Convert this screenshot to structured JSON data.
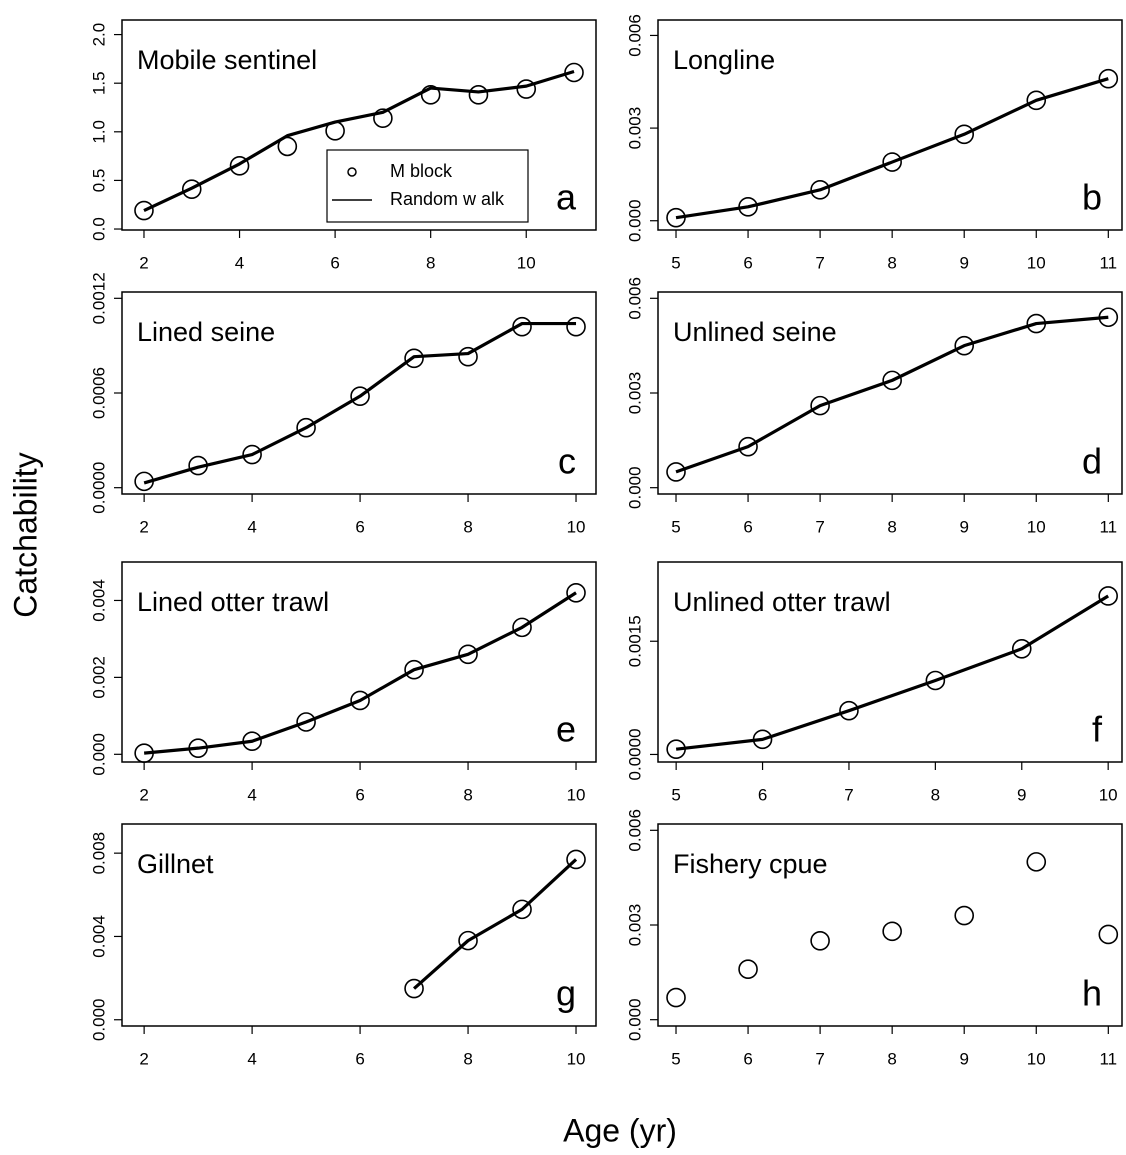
{
  "ylabel": "Catchability",
  "xlabel": "Age (yr)",
  "chart_data": [
    {
      "type": "line",
      "title": "Mobile sentinel",
      "annotation": "a",
      "legend": "bottom-right",
      "x": [
        2,
        3,
        4,
        5,
        6,
        7,
        8,
        9,
        10,
        11
      ],
      "series": [
        {
          "name": "M block",
          "mode": "markers",
          "color": "#000000",
          "values": [
            0.19,
            0.41,
            0.65,
            0.85,
            1.01,
            1.14,
            1.38,
            1.38,
            1.44,
            1.61
          ]
        },
        {
          "name": "Random w alk",
          "mode": "line",
          "color": "#000000",
          "values": [
            0.19,
            0.42,
            0.67,
            0.96,
            1.1,
            1.2,
            1.45,
            1.41,
            1.47,
            1.62
          ]
        }
      ],
      "xlim": [
        1.54,
        11.46
      ],
      "ylim": [
        -0.01,
        2.15
      ],
      "xticks": [
        2,
        4,
        6,
        8,
        10
      ],
      "yticks": [
        {
          "value": 0,
          "label": "0.0"
        },
        0.5,
        {
          "value": 1,
          "label": "1.0"
        },
        1.5,
        {
          "value": 2,
          "label": "2.0"
        }
      ]
    },
    {
      "type": "line",
      "title": "Longline",
      "annotation": "b",
      "x": [
        5,
        6,
        7,
        8,
        9,
        10,
        11
      ],
      "series": [
        {
          "mode": "markers",
          "color": "#000000",
          "values": [
            0.0001,
            0.00045,
            0.001,
            0.0019,
            0.0028,
            0.0039,
            0.0046
          ]
        },
        {
          "mode": "line",
          "color": "#000000",
          "values": [
            0.0001,
            0.00045,
            0.001,
            0.0019,
            0.0028,
            0.0039,
            0.0046
          ]
        }
      ],
      "xlim": [
        4.75,
        11.19
      ],
      "ylim": [
        -0.0003,
        0.0065
      ],
      "xticks": [
        5,
        6,
        7,
        8,
        9,
        10,
        11
      ],
      "yticks": [
        {
          "value": 0,
          "label": "0.000"
        },
        {
          "value": 0.003,
          "label": "0.003"
        },
        {
          "value": 0.006,
          "label": "0.006"
        }
      ]
    },
    {
      "type": "line",
      "title": "Lined seine",
      "annotation": "c",
      "x": [
        2,
        3,
        4,
        5,
        6,
        7,
        8,
        9,
        10
      ],
      "series": [
        {
          "mode": "markers",
          "color": "#000000",
          "values": [
            4e-05,
            0.00014,
            0.00021,
            0.00038,
            0.00058,
            0.00082,
            0.00083,
            0.00102,
            0.00102
          ]
        },
        {
          "mode": "line",
          "color": "#000000",
          "values": [
            3e-05,
            0.00013,
            0.00021,
            0.00038,
            0.00058,
            0.00083,
            0.00085,
            0.00104,
            0.00104
          ]
        }
      ],
      "xlim": [
        1.59,
        10.37
      ],
      "ylim": [
        -4e-05,
        0.00124
      ],
      "xticks": [
        2,
        4,
        6,
        8,
        10
      ],
      "yticks": [
        {
          "value": 0,
          "label": "0.0000"
        },
        {
          "value": 0.0006,
          "label": "0.0006"
        },
        {
          "value": 0.0012,
          "label": "0.0012"
        }
      ]
    },
    {
      "type": "line",
      "title": "Unlined seine",
      "annotation": "d",
      "x": [
        5,
        6,
        7,
        8,
        9,
        10,
        11
      ],
      "series": [
        {
          "mode": "markers",
          "color": "#000000",
          "values": [
            0.0005,
            0.0013,
            0.0026,
            0.0034,
            0.0045,
            0.0052,
            0.0054
          ]
        },
        {
          "mode": "line",
          "color": "#000000",
          "values": [
            0.0005,
            0.0013,
            0.0026,
            0.0034,
            0.0045,
            0.0052,
            0.0054
          ]
        }
      ],
      "xlim": [
        4.75,
        11.19
      ],
      "ylim": [
        -0.0002,
        0.0062
      ],
      "xticks": [
        5,
        6,
        7,
        8,
        9,
        10,
        11
      ],
      "yticks": [
        {
          "value": 0,
          "label": "0.000"
        },
        {
          "value": 0.003,
          "label": "0.003"
        },
        {
          "value": 0.006,
          "label": "0.006"
        }
      ]
    },
    {
      "type": "line",
      "title": "Lined otter trawl",
      "annotation": "e",
      "x": [
        2,
        3,
        4,
        5,
        6,
        7,
        8,
        9,
        10
      ],
      "series": [
        {
          "mode": "markers",
          "color": "#000000",
          "values": [
            3e-05,
            0.00016,
            0.00034,
            0.00084,
            0.0014,
            0.0022,
            0.0026,
            0.0033,
            0.0042
          ]
        },
        {
          "mode": "line",
          "color": "#000000",
          "values": [
            3e-05,
            0.00016,
            0.00034,
            0.00084,
            0.0014,
            0.0022,
            0.0026,
            0.0033,
            0.0042
          ]
        }
      ],
      "xlim": [
        1.59,
        10.37
      ],
      "ylim": [
        -0.0002,
        0.005
      ],
      "xticks": [
        2,
        4,
        6,
        8,
        10
      ],
      "yticks": [
        {
          "value": 0,
          "label": "0.000"
        },
        {
          "value": 0.002,
          "label": "0.002"
        },
        {
          "value": 0.004,
          "label": "0.004"
        }
      ]
    },
    {
      "type": "line",
      "title": "Unlined otter trawl",
      "annotation": "f",
      "x": [
        5,
        6,
        7,
        8,
        9,
        10
      ],
      "series": [
        {
          "mode": "markers",
          "color": "#000000",
          "values": [
            7e-05,
            0.0002,
            0.00058,
            0.00098,
            0.0014,
            0.0021
          ]
        },
        {
          "mode": "line",
          "color": "#000000",
          "values": [
            7e-05,
            0.0002,
            0.00058,
            0.00098,
            0.0014,
            0.0021
          ]
        }
      ],
      "xlim": [
        4.79,
        10.16
      ],
      "ylim": [
        -0.0001,
        0.00255
      ],
      "xticks": [
        5,
        6,
        7,
        8,
        9,
        10
      ],
      "yticks": [
        {
          "value": 0,
          "label": "0.0000"
        },
        {
          "value": 0.0015,
          "label": "0.0015"
        }
      ]
    },
    {
      "type": "line",
      "title": "Gillnet",
      "annotation": "g",
      "x": [
        7,
        8,
        9,
        10
      ],
      "series": [
        {
          "mode": "markers",
          "color": "#000000",
          "values": [
            0.0015,
            0.0038,
            0.0053,
            0.0077
          ]
        },
        {
          "mode": "line",
          "color": "#000000",
          "values": [
            0.0015,
            0.0038,
            0.0053,
            0.0077
          ]
        }
      ],
      "xlim": [
        1.59,
        10.37
      ],
      "ylim": [
        -0.0003,
        0.0094
      ],
      "xticks": [
        2,
        4,
        6,
        8,
        10
      ],
      "yticks": [
        {
          "value": 0,
          "label": "0.000"
        },
        {
          "value": 0.004,
          "label": "0.004"
        },
        {
          "value": 0.008,
          "label": "0.008"
        }
      ]
    },
    {
      "type": "line",
      "title": "Fishery cpue",
      "annotation": "h",
      "x": [
        5,
        6,
        7,
        8,
        9,
        10,
        11
      ],
      "series": [
        {
          "mode": "markers",
          "color": "#000000",
          "values": [
            0.0007,
            0.0016,
            0.0025,
            0.0028,
            0.0033,
            0.005,
            0.0027
          ]
        }
      ],
      "xlim": [
        4.75,
        11.19
      ],
      "ylim": [
        -0.0002,
        0.0062
      ],
      "xticks": [
        5,
        6,
        7,
        8,
        9,
        10,
        11
      ],
      "yticks": [
        {
          "value": 0,
          "label": "0.000"
        },
        {
          "value": 0.003,
          "label": "0.003"
        },
        {
          "value": 0.006,
          "label": "0.006"
        }
      ]
    }
  ]
}
